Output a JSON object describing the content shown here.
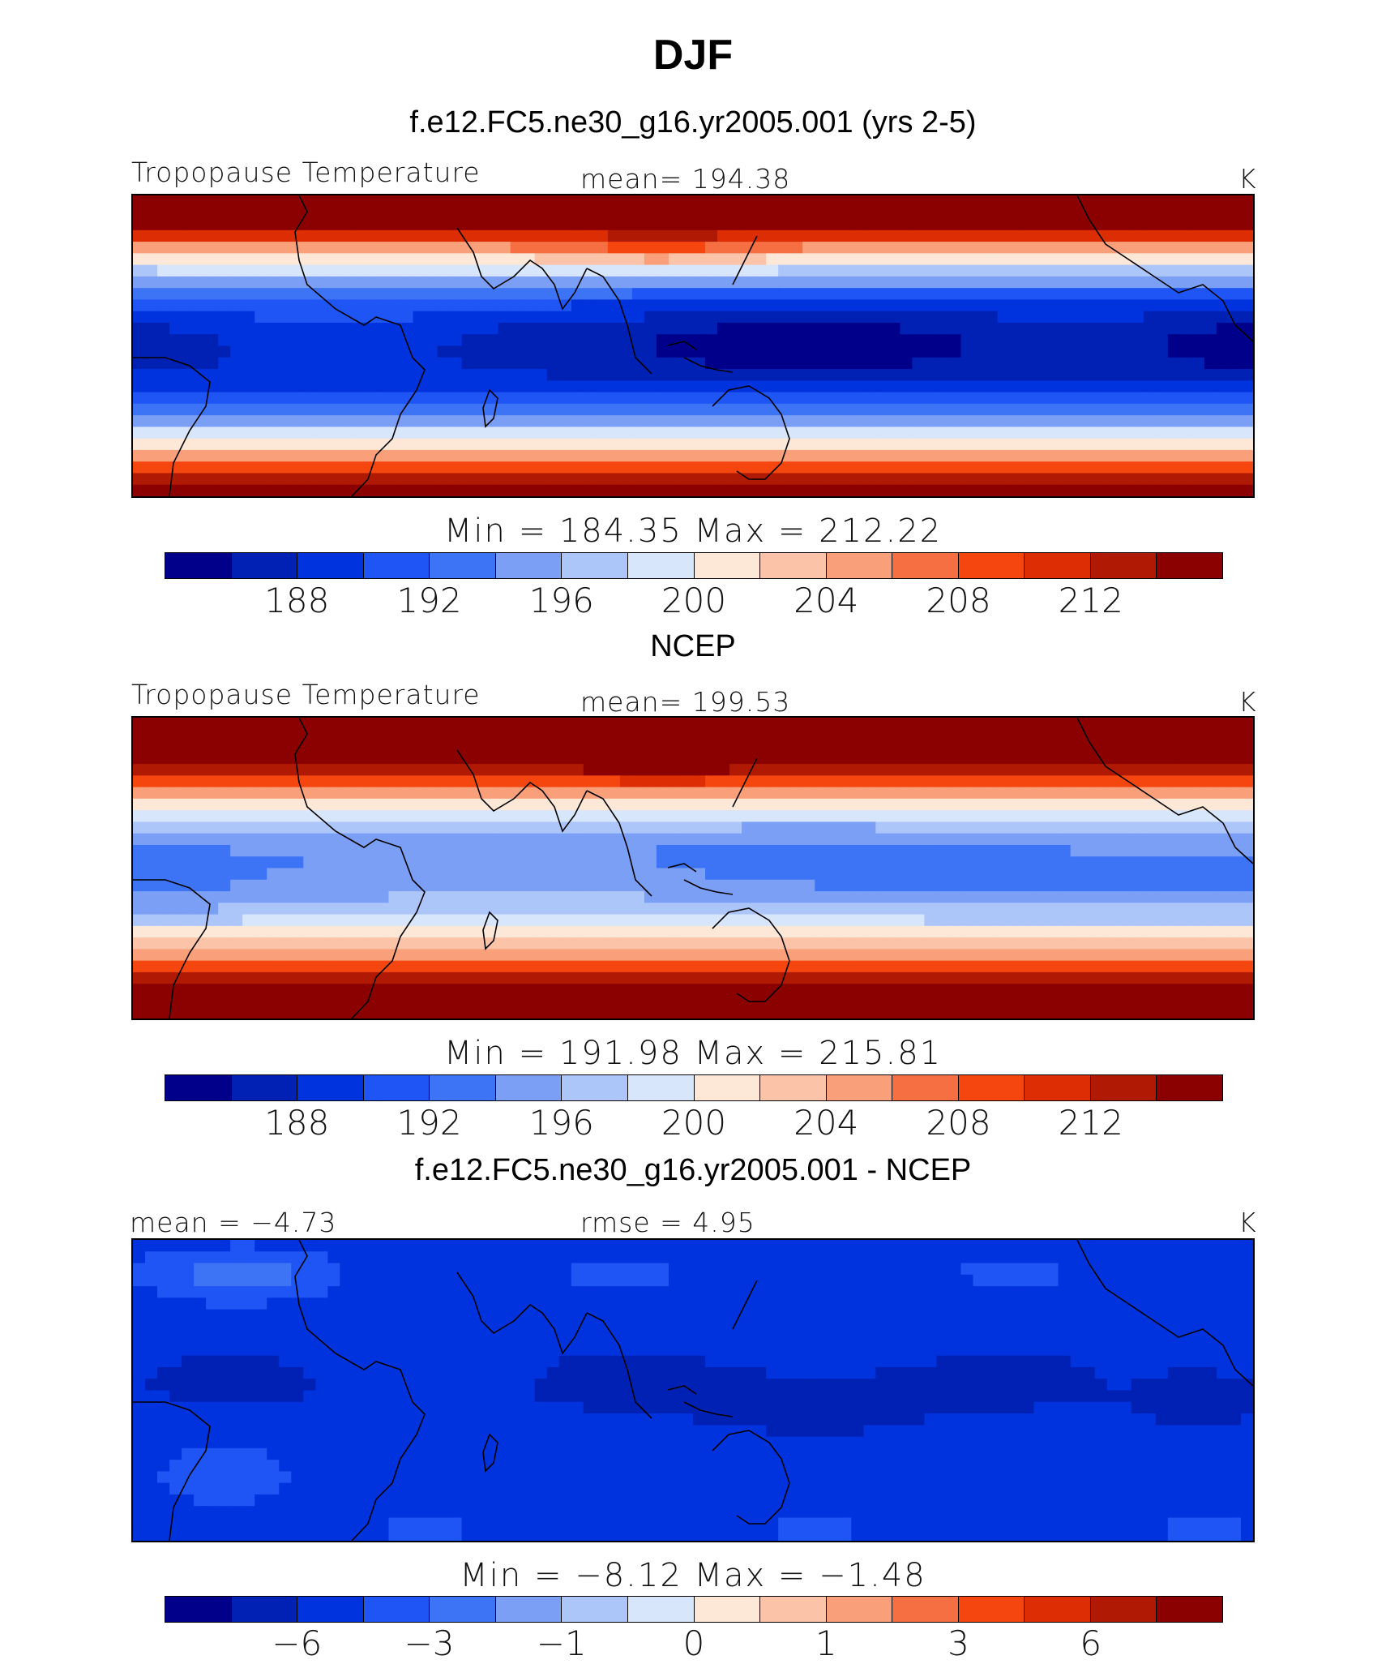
{
  "title": "DJF",
  "colors": [
    "#00008b",
    "#0021b4",
    "#0033dd",
    "#1f55f5",
    "#3d74f5",
    "#7a9ff5",
    "#adc6fa",
    "#d7e6fa",
    "#fde7d6",
    "#fbc3a7",
    "#f9a07a",
    "#f56f42",
    "#f5460f",
    "#dc2d05",
    "#b01a05",
    "#8b0000"
  ],
  "panels": [
    {
      "title": "f.e12.FC5.ne30_g16.yr2005.001 (yrs 2-5)",
      "left_label": "Tropopause Temperature",
      "center_label": "mean= 194.38",
      "units": "K",
      "minmax": "Min = 184.35 Max = 212.22",
      "ticks": [
        "188",
        "192",
        "196",
        "200",
        "204",
        "208",
        "212"
      ],
      "field": "model"
    },
    {
      "title": "NCEP",
      "left_label": "Tropopause Temperature",
      "center_label": "mean= 199.53",
      "units": "K",
      "minmax": "Min = 191.98 Max = 215.81",
      "ticks": [
        "188",
        "192",
        "196",
        "200",
        "204",
        "208",
        "212"
      ],
      "field": "obs"
    },
    {
      "title": "f.e12.FC5.ne30_g16.yr2005.001 - NCEP",
      "left_label": "mean = −4.73",
      "center_label": "rmse =   4.95",
      "units": "K",
      "minmax": "Min =  −8.12 Max =  −1.48",
      "ticks": [
        "−6",
        "−3",
        "−1",
        "0",
        "1",
        "3",
        "6"
      ],
      "field": "diff"
    }
  ]
}
